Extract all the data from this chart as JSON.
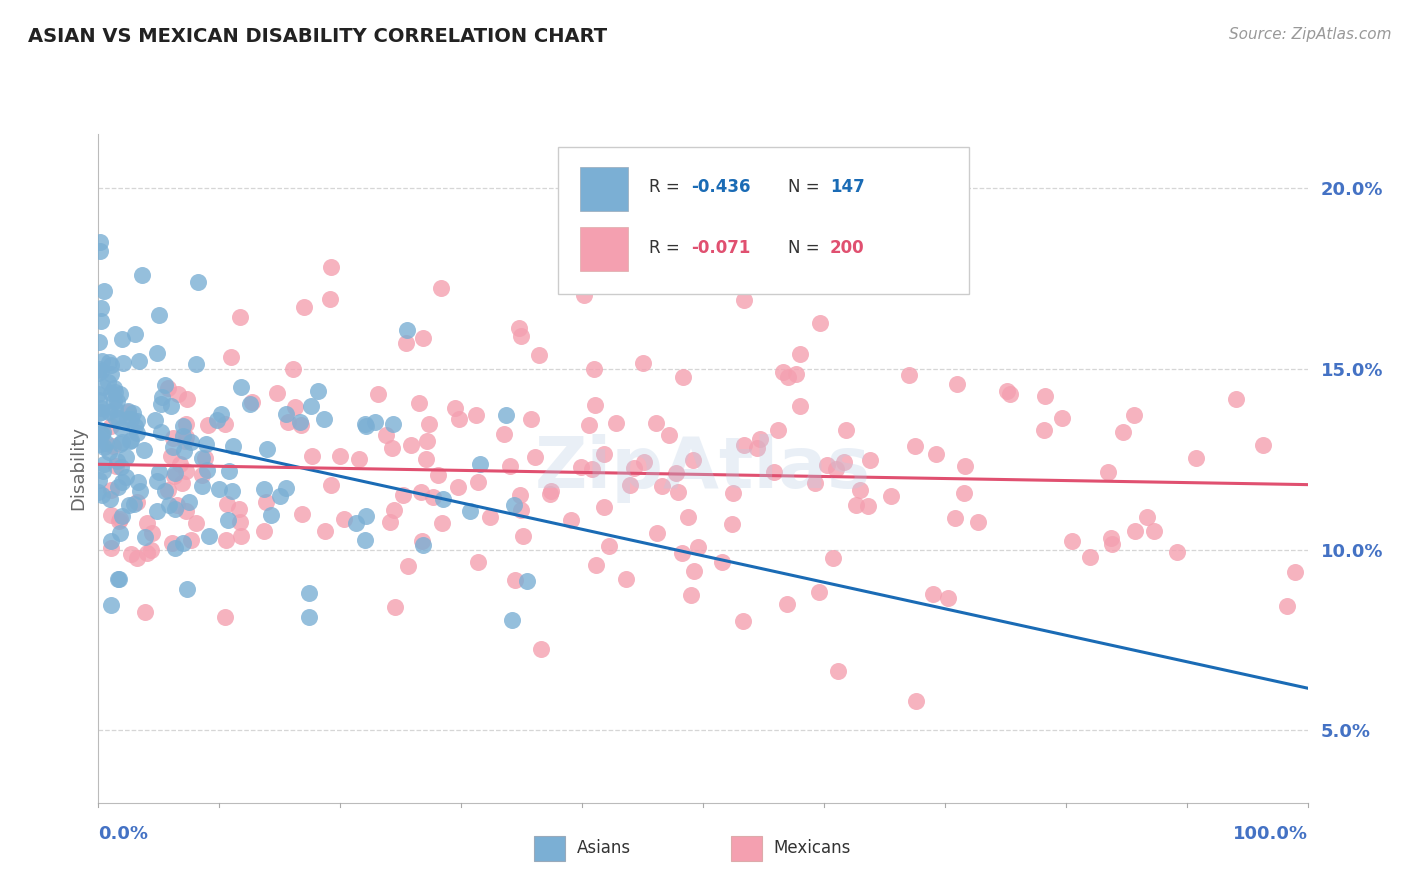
{
  "title": "ASIAN VS MEXICAN DISABILITY CORRELATION CHART",
  "source_text": "Source: ZipAtlas.com",
  "ylabel": "Disability",
  "ytick_labels": [
    "5.0%",
    "10.0%",
    "15.0%",
    "20.0%"
  ],
  "ytick_values": [
    0.05,
    0.1,
    0.15,
    0.2
  ],
  "asian_color": "#7bafd4",
  "mexican_color": "#f4a0b0",
  "asian_line_color": "#1a6bb5",
  "mexican_line_color": "#e05070",
  "R_asian": -0.436,
  "N_asian": 147,
  "R_mexican": -0.071,
  "N_mexican": 200,
  "background_color": "#ffffff",
  "grid_color": "#cccccc",
  "title_color": "#222222",
  "axis_label_color": "#4472c4",
  "watermark": "ZipAtlas",
  "watermark_color": "#b8cce4",
  "seed": 42
}
